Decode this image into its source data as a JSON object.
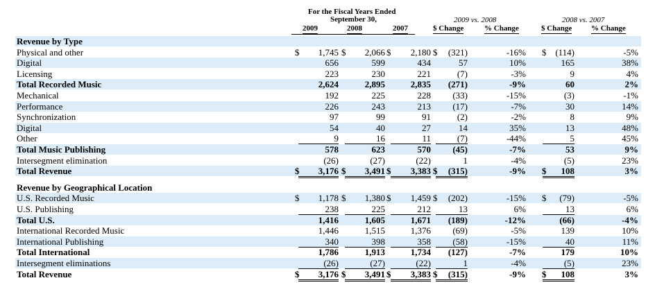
{
  "header": {
    "period_title": "For the Fiscal Years Ended",
    "period_date": "September 30,",
    "years": [
      "2009",
      "2008",
      "2007"
    ],
    "comp1_title": "2009 vs. 2008",
    "comp2_title": "2008 vs. 2007",
    "dollar_change": "$ Change",
    "pct_change": "% Change"
  },
  "rows": [
    {
      "type": "section",
      "label": "Revenue by Type"
    },
    {
      "label": "Physical and other",
      "c2009": "1,745",
      "c2008": "2,066",
      "c2007": "2,180",
      "d1": "(321)",
      "p1": "-16%",
      "d2": "(114)",
      "p2": "-5%",
      "sym_year": "$",
      "sym_d": "$"
    },
    {
      "label": "Digital",
      "c2009": "656",
      "c2008": "599",
      "c2007": "434",
      "d1": "57",
      "p1": "10%",
      "d2": "165",
      "p2": "38%"
    },
    {
      "label": "Licensing",
      "c2009": "223",
      "c2008": "230",
      "c2007": "221",
      "d1": "(7)",
      "p1": "-3%",
      "d2": "9",
      "p2": "4%",
      "ul": "single"
    },
    {
      "label": "Total Recorded Music",
      "bold": true,
      "c2009": "2,624",
      "c2008": "2,895",
      "c2007": "2,835",
      "d1": "(271)",
      "p1": "-9%",
      "d2": "60",
      "p2": "2%"
    },
    {
      "label": "Mechanical",
      "c2009": "192",
      "c2008": "225",
      "c2007": "228",
      "d1": "(33)",
      "p1": "-15%",
      "d2": "(3)",
      "p2": "-1%"
    },
    {
      "label": "Performance",
      "c2009": "226",
      "c2008": "243",
      "c2007": "213",
      "d1": "(17)",
      "p1": "-7%",
      "d2": "30",
      "p2": "14%"
    },
    {
      "label": "Synchronization",
      "c2009": "97",
      "c2008": "99",
      "c2007": "91",
      "d1": "(2)",
      "p1": "-2%",
      "d2": "8",
      "p2": "9%"
    },
    {
      "label": "Digital",
      "c2009": "54",
      "c2008": "40",
      "c2007": "27",
      "d1": "14",
      "p1": "35%",
      "d2": "13",
      "p2": "48%"
    },
    {
      "label": "Other",
      "c2009": "9",
      "c2008": "16",
      "c2007": "11",
      "d1": "(7)",
      "p1": "-44%",
      "d2": "5",
      "p2": "45%",
      "ul": "single"
    },
    {
      "label": "Total Music Publishing",
      "bold": true,
      "c2009": "578",
      "c2008": "623",
      "c2007": "570",
      "d1": "(45)",
      "p1": "-7%",
      "d2": "53",
      "p2": "9%"
    },
    {
      "label": "Intersegment elimination",
      "c2009": "(26)",
      "c2008": "(27)",
      "c2007": "(22)",
      "d1": "1",
      "p1": "-4%",
      "d2": "(5)",
      "p2": "23%",
      "ul": "single"
    },
    {
      "label": "Total Revenue",
      "bold": true,
      "c2009": "3,176",
      "c2008": "3,491",
      "c2007": "3,383",
      "d1": "(315)",
      "p1": "-9%",
      "d2": "108",
      "p2": "3%",
      "sym_year": "$",
      "sym_d": "$",
      "ul": "double"
    },
    {
      "type": "spacer"
    },
    {
      "type": "section",
      "label": "Revenue by Geographical Location"
    },
    {
      "label": "U.S. Recorded Music",
      "c2009": "1,178",
      "c2008": "1,380",
      "c2007": "1,459",
      "d1": "(202)",
      "p1": "-15%",
      "d2": "(79)",
      "p2": "-5%",
      "sym_year": "$",
      "sym_d": "$"
    },
    {
      "label": "U.S. Publishing",
      "c2009": "238",
      "c2008": "225",
      "c2007": "212",
      "d1": "13",
      "p1": "6%",
      "d2": "13",
      "p2": "6%",
      "ul": "single"
    },
    {
      "label": "Total U.S.",
      "bold": true,
      "c2009": "1,416",
      "c2008": "1,605",
      "c2007": "1,671",
      "d1": "(189)",
      "p1": "-12%",
      "d2": "(66)",
      "p2": "-4%"
    },
    {
      "label": "International Recorded Music",
      "c2009": "1,446",
      "c2008": "1,515",
      "c2007": "1,376",
      "d1": "(69)",
      "p1": "-5%",
      "d2": "139",
      "p2": "10%"
    },
    {
      "label": "International Publishing",
      "c2009": "340",
      "c2008": "398",
      "c2007": "358",
      "d1": "(58)",
      "p1": "-15%",
      "d2": "40",
      "p2": "11%",
      "ul": "single"
    },
    {
      "label": "Total International",
      "bold": true,
      "c2009": "1,786",
      "c2008": "1,913",
      "c2007": "1,734",
      "d1": "(127)",
      "p1": "-7%",
      "d2": "179",
      "p2": "10%"
    },
    {
      "label": "Intersegment eliminations",
      "c2009": "(26)",
      "c2008": "(27)",
      "c2007": "(22)",
      "d1": "1",
      "p1": "-4%",
      "d2": "(5)",
      "p2": "23%",
      "ul": "single"
    },
    {
      "label": "Total Revenue",
      "bold": true,
      "c2009": "3,176",
      "c2008": "3,491",
      "c2007": "3,383",
      "d1": "(315)",
      "p1": "-9%",
      "d2": "108",
      "p2": "3%",
      "sym_year": "$",
      "sym_d": "$",
      "ul": "double"
    }
  ]
}
